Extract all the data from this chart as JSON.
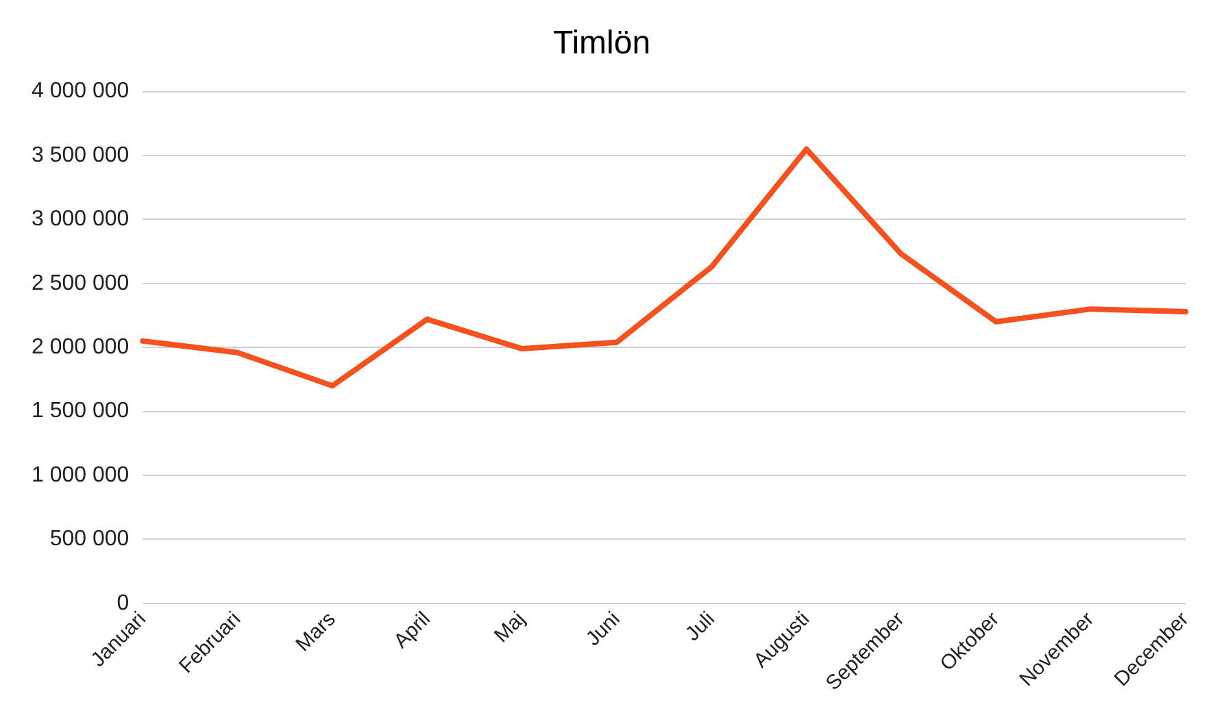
{
  "chart_data": {
    "type": "line",
    "title": "Timlön",
    "categories": [
      "Januari",
      "Februari",
      "Mars",
      "April",
      "Maj",
      "Juni",
      "Juli",
      "Augusti",
      "September",
      "Oktober",
      "November",
      "December"
    ],
    "series": [
      {
        "color": "#f4511e",
        "values": [
          2050000,
          1960000,
          1700000,
          2220000,
          1990000,
          2040000,
          2630000,
          3550000,
          2730000,
          2200000,
          2300000,
          2280000
        ]
      }
    ],
    "ylim": [
      0,
      4000000
    ],
    "yticks": [
      0,
      {
        "value": 500000,
        "label": "500 000"
      },
      {
        "value": 1000000,
        "label": "1 000 000"
      },
      {
        "value": 1500000,
        "label": "1 500 000"
      },
      {
        "value": 2000000,
        "label": "2 000 000"
      },
      {
        "value": 2500000,
        "label": "2 500 000"
      },
      {
        "value": 3000000,
        "label": "3 000 000"
      },
      {
        "value": 3500000,
        "label": "3 500 000"
      },
      {
        "value": 4000000,
        "label": "4 000 000"
      }
    ],
    "grid": "y",
    "marker": "none",
    "line_style": "solid",
    "legend": false
  }
}
